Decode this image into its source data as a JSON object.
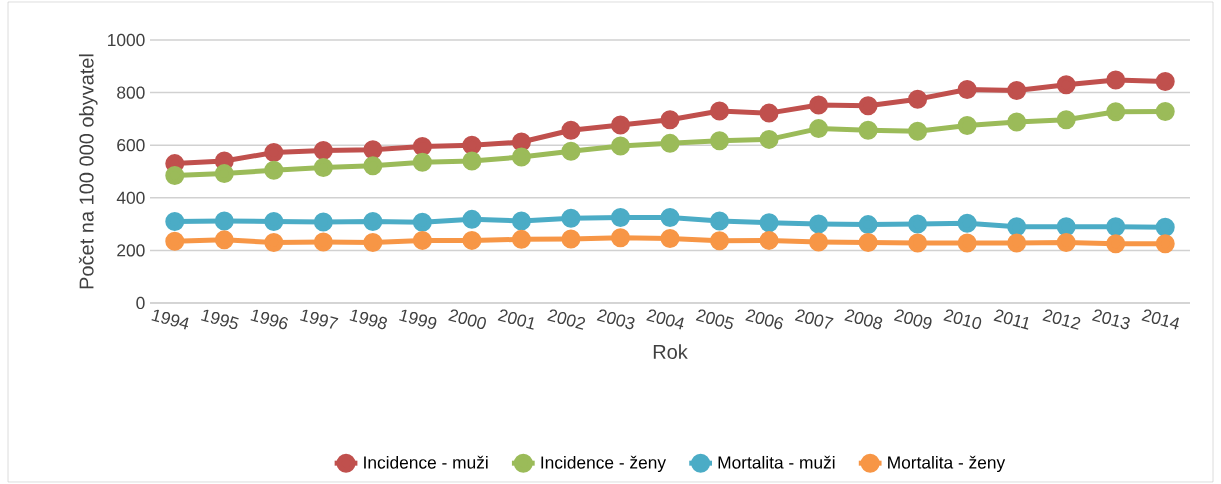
{
  "chart_data": {
    "type": "line",
    "xlabel": "Rok",
    "ylabel": "Počet na 100 000 obyvatel",
    "categories": [
      "1994",
      "1995",
      "1996",
      "1997",
      "1998",
      "1999",
      "2000",
      "2001",
      "2002",
      "2003",
      "2004",
      "2005",
      "2006",
      "2007",
      "2008",
      "2009",
      "2010",
      "2011",
      "2012",
      "2013",
      "2014"
    ],
    "series": [
      {
        "name": "Incidence - muži",
        "color": "#c0504d",
        "values": [
          530,
          540,
          572,
          580,
          583,
          595,
          600,
          612,
          657,
          677,
          697,
          730,
          722,
          753,
          750,
          775,
          812,
          808,
          830,
          848,
          842
        ]
      },
      {
        "name": "Incidence - ženy",
        "color": "#9bbb59",
        "values": [
          485,
          492,
          505,
          515,
          522,
          535,
          540,
          555,
          577,
          597,
          607,
          617,
          622,
          663,
          657,
          653,
          675,
          688,
          697,
          727,
          728
        ]
      },
      {
        "name": "Mortalita - muži",
        "color": "#4bacc6",
        "values": [
          310,
          312,
          310,
          308,
          310,
          307,
          318,
          312,
          322,
          325,
          325,
          312,
          305,
          300,
          298,
          300,
          303,
          290,
          290,
          290,
          288
        ]
      },
      {
        "name": "Mortalita - ženy",
        "color": "#f79646",
        "values": [
          235,
          240,
          230,
          232,
          230,
          238,
          238,
          242,
          243,
          248,
          245,
          237,
          238,
          232,
          230,
          228,
          228,
          228,
          230,
          225,
          225
        ]
      }
    ],
    "ylim": [
      0,
      1000
    ],
    "yticks": [
      0,
      200,
      400,
      600,
      800,
      1000
    ],
    "grid": "y",
    "legend": "bottom",
    "marker": "circle",
    "line_style": "solid"
  }
}
